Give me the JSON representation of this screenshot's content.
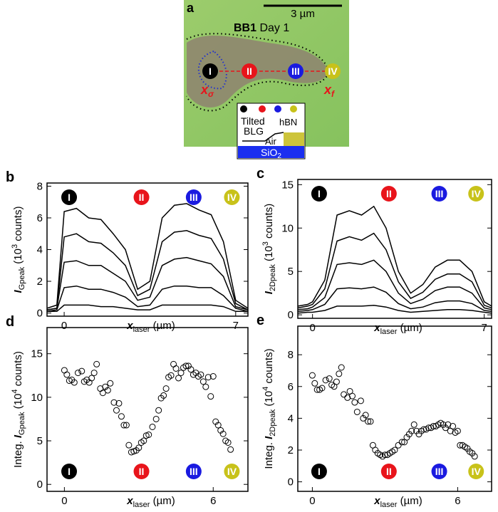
{
  "panel_a": {
    "label": "a",
    "scale_bar": "3 µm",
    "title_bold": "BB1",
    "title_rest": " Day 1",
    "markers": [
      "I",
      "II",
      "III",
      "IV"
    ],
    "x_sigma": {
      "main": "x",
      "sub": "σ"
    },
    "x_f": {
      "main": "x",
      "sub": "f"
    },
    "inset": {
      "tilted": "Tilted",
      "blg": "BLG",
      "air": "Air",
      "hbn": "hBN",
      "sio": "SiO",
      "sio_sub": "2"
    }
  },
  "chart_data": [
    {
      "type": "line",
      "panel_label": "b",
      "ylabel": [
        {
          "text": "I",
          "role": "main"
        },
        {
          "text": "Gpeak",
          "role": "sub"
        },
        {
          "text": " (10",
          "role": "plain"
        },
        {
          "text": "3",
          "role": "sup"
        },
        {
          "text": " counts)",
          "role": "plain"
        }
      ],
      "xlabel": [
        {
          "text": "x",
          "role": "main"
        },
        {
          "text": "laser",
          "role": "sub"
        },
        {
          "text": " (µm)",
          "role": "plain"
        }
      ],
      "x": [
        -0.7,
        -0.3,
        0,
        0.5,
        1,
        1.5,
        2,
        2.5,
        3,
        3.5,
        4,
        4.5,
        5,
        5.5,
        6,
        6.5,
        7,
        7.5
      ],
      "series": [
        {
          "color": "#000000",
          "values": [
            0.3,
            0.5,
            6.4,
            6.6,
            6.0,
            5.9,
            5.0,
            4.0,
            1.5,
            2.0,
            6.0,
            6.8,
            6.9,
            6.5,
            6.2,
            4.5,
            0.8,
            0.3
          ]
        },
        {
          "color": "#000000",
          "values": [
            0.2,
            0.3,
            4.8,
            5.0,
            4.5,
            4.4,
            3.8,
            3.0,
            1.1,
            1.5,
            4.5,
            5.1,
            5.2,
            4.9,
            4.7,
            3.4,
            0.6,
            0.2
          ]
        },
        {
          "color": "#000000",
          "values": [
            0.2,
            0.3,
            3.2,
            3.3,
            3.0,
            3.0,
            2.5,
            2.0,
            0.8,
            1.0,
            3.0,
            3.4,
            3.5,
            3.3,
            3.1,
            2.3,
            0.4,
            0.2
          ]
        },
        {
          "color": "#000000",
          "values": [
            0.1,
            0.2,
            1.6,
            1.7,
            1.5,
            1.5,
            1.3,
            1.0,
            0.4,
            0.5,
            1.5,
            1.7,
            1.7,
            1.6,
            1.6,
            1.1,
            0.3,
            0.1
          ]
        },
        {
          "color": "#000000",
          "values": [
            0.1,
            0.1,
            0.5,
            0.5,
            0.5,
            0.4,
            0.4,
            0.3,
            0.2,
            0.2,
            0.5,
            0.5,
            0.5,
            0.5,
            0.5,
            0.4,
            0.1,
            0.1
          ]
        }
      ],
      "xlim": [
        -0.7,
        7.5
      ],
      "ylim": [
        -0.2,
        8.2
      ],
      "xticks": [
        0,
        7
      ],
      "yticks": [
        0,
        2,
        4,
        6,
        8
      ],
      "markers": [
        {
          "label": "I",
          "color": "#000000"
        },
        {
          "label": "II",
          "color": "#e8141b"
        },
        {
          "label": "III",
          "color": "#1a1ae0"
        },
        {
          "label": "IV",
          "color": "#c8c21a"
        }
      ]
    },
    {
      "type": "line",
      "panel_label": "c",
      "ylabel": [
        {
          "text": "I",
          "role": "main"
        },
        {
          "text": "2Dpeak",
          "role": "sub"
        },
        {
          "text": " (10",
          "role": "plain"
        },
        {
          "text": "3",
          "role": "sup"
        },
        {
          "text": " counts)",
          "role": "plain"
        }
      ],
      "xlabel": [
        {
          "text": "x",
          "role": "main"
        },
        {
          "text": "laser",
          "role": "sub"
        },
        {
          "text": " (µm)",
          "role": "plain"
        }
      ],
      "x": [
        -0.6,
        -0.2,
        0,
        0.5,
        1,
        1.5,
        2,
        2.5,
        3,
        3.5,
        4,
        4.5,
        5,
        5.5,
        6,
        6.5,
        7,
        7.3
      ],
      "series": [
        {
          "color": "#000000",
          "values": [
            1.0,
            1.2,
            1.5,
            4.0,
            11.5,
            12.0,
            11.5,
            12.5,
            10.0,
            5.0,
            2.5,
            3.5,
            5.5,
            6.3,
            6.3,
            5.0,
            1.5,
            1.0
          ]
        },
        {
          "color": "#000000",
          "values": [
            0.8,
            1.0,
            1.2,
            3.0,
            8.5,
            9.0,
            8.6,
            9.4,
            7.5,
            3.8,
            1.9,
            2.6,
            4.1,
            4.7,
            4.7,
            3.8,
            1.1,
            0.8
          ]
        },
        {
          "color": "#000000",
          "values": [
            0.6,
            0.7,
            0.9,
            2.0,
            5.8,
            6.0,
            5.8,
            6.3,
            5.0,
            2.5,
            1.3,
            1.8,
            2.8,
            3.2,
            3.2,
            2.5,
            0.8,
            0.6
          ]
        },
        {
          "color": "#000000",
          "values": [
            0.4,
            0.5,
            0.6,
            1.2,
            3.0,
            3.1,
            3.0,
            3.2,
            2.6,
            1.3,
            0.7,
            0.9,
            1.4,
            1.6,
            1.6,
            1.3,
            0.5,
            0.4
          ]
        },
        {
          "color": "#000000",
          "values": [
            0.2,
            0.3,
            0.3,
            0.5,
            1.0,
            1.0,
            1.0,
            1.1,
            0.9,
            0.5,
            0.3,
            0.4,
            0.5,
            0.6,
            0.6,
            0.5,
            0.3,
            0.2
          ]
        }
      ],
      "xlim": [
        -0.6,
        7.3
      ],
      "ylim": [
        -0.4,
        15.6
      ],
      "xticks": [
        0,
        7
      ],
      "yticks": [
        0,
        5,
        10,
        15
      ],
      "markers": [
        {
          "label": "I",
          "color": "#000000"
        },
        {
          "label": "II",
          "color": "#e8141b"
        },
        {
          "label": "III",
          "color": "#1a1ae0"
        },
        {
          "label": "IV",
          "color": "#c8c21a"
        }
      ]
    },
    {
      "type": "scatter",
      "panel_label": "d",
      "ylabel": [
        {
          "text": "Integ. ",
          "role": "plain"
        },
        {
          "text": "I",
          "role": "main"
        },
        {
          "text": "Gpeak",
          "role": "sub"
        },
        {
          "text": " (10",
          "role": "plain"
        },
        {
          "text": "4",
          "role": "sup"
        },
        {
          "text": " counts)",
          "role": "plain"
        }
      ],
      "xlabel": [
        {
          "text": "x",
          "role": "main"
        },
        {
          "text": "laser",
          "role": "sub"
        },
        {
          "text": " (µm)",
          "role": "plain"
        }
      ],
      "x": [
        0,
        0.1,
        0.2,
        0.3,
        0.4,
        0.55,
        0.7,
        0.8,
        0.9,
        1.0,
        1.1,
        1.2,
        1.3,
        1.45,
        1.55,
        1.65,
        1.75,
        1.85,
        2.0,
        2.1,
        2.2,
        2.3,
        2.4,
        2.5,
        2.6,
        2.7,
        2.8,
        2.9,
        3.0,
        3.1,
        3.2,
        3.3,
        3.4,
        3.55,
        3.7,
        3.8,
        3.9,
        4.0,
        4.1,
        4.2,
        4.3,
        4.4,
        4.5,
        4.6,
        4.7,
        4.8,
        4.9,
        5.0,
        5.1,
        5.2,
        5.3,
        5.4,
        5.5,
        5.6,
        5.7,
        5.8,
        5.9,
        6.0,
        6.1,
        6.2,
        6.3,
        6.4,
        6.5,
        6.6,
        6.7
      ],
      "values": [
        13.1,
        12.6,
        11.9,
        12.0,
        11.7,
        12.8,
        13.0,
        11.8,
        12.0,
        11.7,
        12.2,
        12.8,
        13.8,
        11.0,
        10.5,
        11.2,
        10.8,
        11.6,
        9.4,
        8.5,
        9.3,
        7.8,
        6.8,
        6.8,
        4.5,
        3.7,
        3.8,
        3.9,
        4.2,
        4.8,
        5.0,
        5.6,
        5.7,
        6.6,
        7.5,
        8.5,
        9.9,
        10.2,
        11.0,
        12.3,
        12.5,
        13.8,
        13.3,
        12.2,
        12.8,
        13.4,
        13.6,
        13.6,
        13.2,
        12.6,
        12.8,
        12.4,
        12.6,
        11.8,
        11.2,
        12.3,
        10.1,
        12.4,
        7.2,
        6.8,
        6.2,
        5.8,
        5.0,
        4.8,
        4.0
      ],
      "xlim": [
        -0.7,
        7.4
      ],
      "ylim": [
        -0.8,
        18
      ],
      "xticks": [
        0,
        6
      ],
      "yticks": [
        0,
        5,
        10,
        15
      ],
      "markers": [
        {
          "label": "I",
          "color": "#000000"
        },
        {
          "label": "II",
          "color": "#e8141b"
        },
        {
          "label": "III",
          "color": "#1a1ae0"
        },
        {
          "label": "IV",
          "color": "#c8c21a"
        }
      ]
    },
    {
      "type": "scatter",
      "panel_label": "e",
      "ylabel": [
        {
          "text": "Integ. ",
          "role": "plain"
        },
        {
          "text": "I",
          "role": "main"
        },
        {
          "text": "2Dpeak",
          "role": "sub"
        },
        {
          "text": " (10",
          "role": "plain"
        },
        {
          "text": "4",
          "role": "sup"
        },
        {
          "text": " counts)",
          "role": "plain"
        }
      ],
      "xlabel": [
        {
          "text": "x",
          "role": "main"
        },
        {
          "text": "laser",
          "role": "sub"
        },
        {
          "text": " (µm)",
          "role": "plain"
        }
      ],
      "x": [
        0,
        0.1,
        0.2,
        0.3,
        0.4,
        0.55,
        0.7,
        0.8,
        0.9,
        1.0,
        1.1,
        1.2,
        1.3,
        1.45,
        1.55,
        1.65,
        1.75,
        1.85,
        2.0,
        2.1,
        2.2,
        2.3,
        2.4,
        2.5,
        2.6,
        2.7,
        2.8,
        2.9,
        3.0,
        3.1,
        3.2,
        3.3,
        3.4,
        3.55,
        3.7,
        3.8,
        3.9,
        4.0,
        4.1,
        4.2,
        4.3,
        4.4,
        4.5,
        4.6,
        4.7,
        4.8,
        4.9,
        5.0,
        5.1,
        5.2,
        5.3,
        5.4,
        5.5,
        5.6,
        5.7,
        5.8,
        5.9,
        6.0,
        6.1,
        6.2,
        6.3,
        6.4,
        6.5,
        6.6,
        6.7
      ],
      "values": [
        6.7,
        6.2,
        5.8,
        5.8,
        5.9,
        6.4,
        6.5,
        6.1,
        6.0,
        6.3,
        6.8,
        7.2,
        5.5,
        5.3,
        5.7,
        5.4,
        5.0,
        4.4,
        5.1,
        4.0,
        4.2,
        3.8,
        3.8,
        2.3,
        2.0,
        1.8,
        1.7,
        1.6,
        1.7,
        1.7,
        1.8,
        1.9,
        2.0,
        2.3,
        2.5,
        2.5,
        2.8,
        3.0,
        3.2,
        3.6,
        3.2,
        3.0,
        3.2,
        3.3,
        3.3,
        3.4,
        3.4,
        3.5,
        3.5,
        3.6,
        3.7,
        3.6,
        3.4,
        3.6,
        3.2,
        3.5,
        3.1,
        3.2,
        2.3,
        2.3,
        2.2,
        2.1,
        1.9,
        1.8,
        1.6
      ],
      "xlim": [
        -0.6,
        7.4
      ],
      "ylim": [
        -0.6,
        9.8
      ],
      "xticks": [
        0,
        6
      ],
      "yticks": [
        0,
        2,
        4,
        6,
        8
      ],
      "markers": [
        {
          "label": "I",
          "color": "#000000"
        },
        {
          "label": "II",
          "color": "#e8141b"
        },
        {
          "label": "III",
          "color": "#1a1ae0"
        },
        {
          "label": "IV",
          "color": "#c8c21a"
        }
      ]
    }
  ]
}
